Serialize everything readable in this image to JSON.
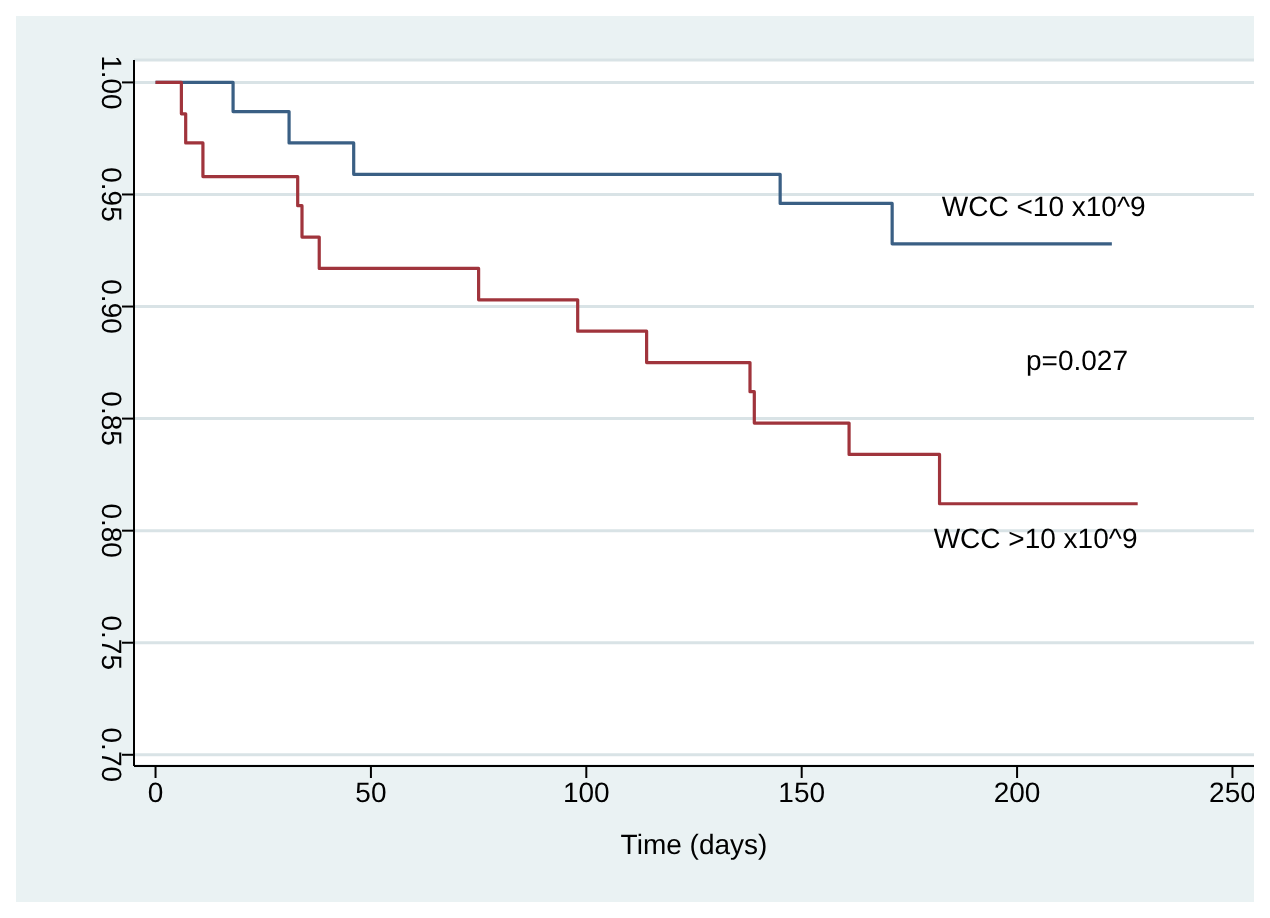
{
  "chart_data": {
    "type": "step",
    "xlabel": "Time (days)",
    "xlim": [
      -5,
      255
    ],
    "xticks": [
      0,
      50,
      100,
      150,
      200,
      250
    ],
    "ylim": [
      0.695,
      1.01
    ],
    "yticks": [
      {
        "value": 0.7,
        "label": "0.70"
      },
      {
        "value": 0.75,
        "label": "0.75"
      },
      {
        "value": 0.8,
        "label": "0.80"
      },
      {
        "value": 0.85,
        "label": "0.85"
      },
      {
        "value": 0.9,
        "label": "0.90"
      },
      {
        "value": 0.95,
        "label": "0.95"
      },
      {
        "value": 1,
        "label": "1.00"
      }
    ],
    "grid": "y",
    "marker": "none",
    "line_style": "solid",
    "series": [
      {
        "name": "WCC <10 x10^9",
        "color": "#3a5f84",
        "x": [
          0,
          18,
          31,
          46,
          145,
          171,
          222
        ],
        "values": [
          1,
          0.987,
          0.973,
          0.959,
          0.946,
          0.928,
          0.928
        ]
      },
      {
        "name": "WCC >10 x10^9",
        "color": "#a0343c",
        "x": [
          0,
          6,
          7,
          11,
          33,
          34,
          38,
          75,
          98,
          114,
          138,
          139,
          161,
          182,
          228
        ],
        "values": [
          1,
          0.986,
          0.973,
          0.958,
          0.945,
          0.931,
          0.917,
          0.903,
          0.889,
          0.875,
          0.862,
          0.848,
          0.834,
          0.812,
          0.812
        ]
      }
    ],
    "annotations": [
      "p=0.027"
    ]
  }
}
